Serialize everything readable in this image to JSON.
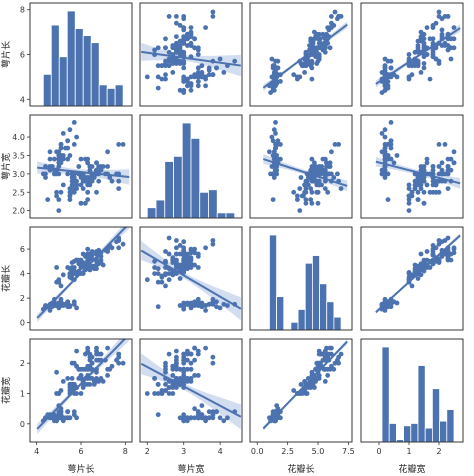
{
  "chart_data": {
    "type": "scatter",
    "kind": "pairplot",
    "variables": [
      "萼片长",
      "萼片宽",
      "花瓣长",
      "花瓣宽"
    ],
    "colors": {
      "marker": "#4c72b0",
      "band": "#c7d5ec",
      "line": "#4c72b0",
      "frame": "#222222"
    },
    "ranges": [
      [
        3.7,
        8.3
      ],
      [
        1.8,
        4.6
      ],
      [
        -0.6,
        7.8
      ],
      [
        -0.6,
        2.8
      ]
    ],
    "ticks": [
      [
        4,
        6,
        8
      ],
      [
        2.0,
        2.5,
        3.0,
        3.5,
        4.0
      ],
      [
        0,
        2,
        4,
        6
      ],
      [
        0,
        1,
        2
      ]
    ],
    "tick_labels": [
      [
        "4",
        "6",
        "8"
      ],
      [
        "2.0",
        "2.5",
        "3.0",
        "3.5",
        "4.0"
      ],
      [
        "0",
        "2",
        "4",
        "6"
      ],
      [
        "0",
        "1",
        "2"
      ]
    ],
    "bottom_ticks": [
      [
        4,
        6,
        8
      ],
      [
        2,
        3,
        4
      ],
      [
        0.0,
        2.5,
        5.0,
        7.5
      ],
      [
        0,
        1,
        2
      ]
    ],
    "bottom_tick_labels": [
      [
        "4",
        "6",
        "8"
      ],
      [
        "2",
        "3",
        "4"
      ],
      [
        "0.0",
        "2.5",
        "5.0",
        "7.5"
      ],
      [
        "0",
        "1",
        "2"
      ]
    ],
    "grid": false,
    "regression": true,
    "samples": [
      [
        5.1,
        3.5,
        1.4,
        0.2
      ],
      [
        4.9,
        3.0,
        1.4,
        0.2
      ],
      [
        4.7,
        3.2,
        1.3,
        0.2
      ],
      [
        4.6,
        3.1,
        1.5,
        0.2
      ],
      [
        5.0,
        3.6,
        1.4,
        0.2
      ],
      [
        5.4,
        3.9,
        1.7,
        0.4
      ],
      [
        4.6,
        3.4,
        1.4,
        0.3
      ],
      [
        5.0,
        3.4,
        1.5,
        0.2
      ],
      [
        4.4,
        2.9,
        1.4,
        0.2
      ],
      [
        4.9,
        3.1,
        1.5,
        0.1
      ],
      [
        5.4,
        3.7,
        1.5,
        0.2
      ],
      [
        4.8,
        3.4,
        1.6,
        0.2
      ],
      [
        4.8,
        3.0,
        1.4,
        0.1
      ],
      [
        4.3,
        3.0,
        1.1,
        0.1
      ],
      [
        5.8,
        4.0,
        1.2,
        0.2
      ],
      [
        5.7,
        4.4,
        1.5,
        0.4
      ],
      [
        5.4,
        3.9,
        1.3,
        0.4
      ],
      [
        5.1,
        3.5,
        1.4,
        0.3
      ],
      [
        5.7,
        3.8,
        1.7,
        0.3
      ],
      [
        5.1,
        3.8,
        1.5,
        0.3
      ],
      [
        5.4,
        3.4,
        1.7,
        0.2
      ],
      [
        5.1,
        3.7,
        1.5,
        0.4
      ],
      [
        4.6,
        3.6,
        1.0,
        0.2
      ],
      [
        5.1,
        3.3,
        1.7,
        0.5
      ],
      [
        4.8,
        3.4,
        1.9,
        0.2
      ],
      [
        5.0,
        3.0,
        1.6,
        0.2
      ],
      [
        5.0,
        3.4,
        1.6,
        0.4
      ],
      [
        5.2,
        3.5,
        1.5,
        0.2
      ],
      [
        5.2,
        3.4,
        1.4,
        0.2
      ],
      [
        4.7,
        3.2,
        1.6,
        0.2
      ],
      [
        4.8,
        3.1,
        1.6,
        0.2
      ],
      [
        5.4,
        3.4,
        1.5,
        0.4
      ],
      [
        5.2,
        4.1,
        1.5,
        0.1
      ],
      [
        5.5,
        4.2,
        1.4,
        0.2
      ],
      [
        4.9,
        3.1,
        1.5,
        0.2
      ],
      [
        5.0,
        3.2,
        1.2,
        0.2
      ],
      [
        5.5,
        3.5,
        1.3,
        0.2
      ],
      [
        4.9,
        3.6,
        1.4,
        0.1
      ],
      [
        4.4,
        3.0,
        1.3,
        0.2
      ],
      [
        5.1,
        3.4,
        1.5,
        0.2
      ],
      [
        5.0,
        3.5,
        1.3,
        0.3
      ],
      [
        4.5,
        2.3,
        1.3,
        0.3
      ],
      [
        4.4,
        3.2,
        1.3,
        0.2
      ],
      [
        5.0,
        3.5,
        1.6,
        0.6
      ],
      [
        5.1,
        3.8,
        1.9,
        0.4
      ],
      [
        4.8,
        3.0,
        1.4,
        0.3
      ],
      [
        5.1,
        3.8,
        1.6,
        0.2
      ],
      [
        4.6,
        3.2,
        1.4,
        0.2
      ],
      [
        5.3,
        3.7,
        1.5,
        0.2
      ],
      [
        5.0,
        3.3,
        1.4,
        0.2
      ],
      [
        7.0,
        3.2,
        4.7,
        1.4
      ],
      [
        6.4,
        3.2,
        4.5,
        1.5
      ],
      [
        6.9,
        3.1,
        4.9,
        1.5
      ],
      [
        5.5,
        2.3,
        4.0,
        1.3
      ],
      [
        6.5,
        2.8,
        4.6,
        1.5
      ],
      [
        5.7,
        2.8,
        4.5,
        1.3
      ],
      [
        6.3,
        3.3,
        4.7,
        1.6
      ],
      [
        4.9,
        2.4,
        3.3,
        1.0
      ],
      [
        6.6,
        2.9,
        4.6,
        1.3
      ],
      [
        5.2,
        2.7,
        3.9,
        1.4
      ],
      [
        5.0,
        2.0,
        3.5,
        1.0
      ],
      [
        5.9,
        3.0,
        4.2,
        1.5
      ],
      [
        6.0,
        2.2,
        4.0,
        1.0
      ],
      [
        6.1,
        2.9,
        4.7,
        1.4
      ],
      [
        5.6,
        2.9,
        3.6,
        1.3
      ],
      [
        6.7,
        3.1,
        4.4,
        1.4
      ],
      [
        5.6,
        3.0,
        4.5,
        1.5
      ],
      [
        5.8,
        2.7,
        4.1,
        1.0
      ],
      [
        6.2,
        2.2,
        4.5,
        1.5
      ],
      [
        5.6,
        2.5,
        3.9,
        1.1
      ],
      [
        5.9,
        3.2,
        4.8,
        1.8
      ],
      [
        6.1,
        2.8,
        4.0,
        1.3
      ],
      [
        6.3,
        2.5,
        4.9,
        1.5
      ],
      [
        6.1,
        2.8,
        4.7,
        1.2
      ],
      [
        6.4,
        2.9,
        4.3,
        1.3
      ],
      [
        6.6,
        3.0,
        4.4,
        1.4
      ],
      [
        6.8,
        2.8,
        4.8,
        1.4
      ],
      [
        6.7,
        3.0,
        5.0,
        1.7
      ],
      [
        6.0,
        2.9,
        4.5,
        1.5
      ],
      [
        5.7,
        2.6,
        3.5,
        1.0
      ],
      [
        5.5,
        2.4,
        3.8,
        1.1
      ],
      [
        5.5,
        2.4,
        3.7,
        1.0
      ],
      [
        5.8,
        2.7,
        3.9,
        1.2
      ],
      [
        6.0,
        2.7,
        5.1,
        1.6
      ],
      [
        5.4,
        3.0,
        4.5,
        1.5
      ],
      [
        6.0,
        3.4,
        4.5,
        1.6
      ],
      [
        6.7,
        3.1,
        4.7,
        1.5
      ],
      [
        6.3,
        2.3,
        4.4,
        1.3
      ],
      [
        5.6,
        3.0,
        4.1,
        1.3
      ],
      [
        5.5,
        2.5,
        4.0,
        1.3
      ],
      [
        5.5,
        2.6,
        4.4,
        1.2
      ],
      [
        6.1,
        3.0,
        4.6,
        1.4
      ],
      [
        5.8,
        2.6,
        4.0,
        1.2
      ],
      [
        5.0,
        2.3,
        3.3,
        1.0
      ],
      [
        5.6,
        2.7,
        4.2,
        1.3
      ],
      [
        5.7,
        3.0,
        4.2,
        1.2
      ],
      [
        5.7,
        2.9,
        4.2,
        1.3
      ],
      [
        6.2,
        2.9,
        4.3,
        1.3
      ],
      [
        5.1,
        2.5,
        3.0,
        1.1
      ],
      [
        5.7,
        2.8,
        4.1,
        1.3
      ],
      [
        6.3,
        3.3,
        6.0,
        2.5
      ],
      [
        5.8,
        2.7,
        5.1,
        1.9
      ],
      [
        7.1,
        3.0,
        5.9,
        2.1
      ],
      [
        6.3,
        2.9,
        5.6,
        1.8
      ],
      [
        6.5,
        3.0,
        5.8,
        2.2
      ],
      [
        7.6,
        3.0,
        6.6,
        2.1
      ],
      [
        4.9,
        2.5,
        4.5,
        1.7
      ],
      [
        7.3,
        2.9,
        6.3,
        1.8
      ],
      [
        6.7,
        2.5,
        5.8,
        1.8
      ],
      [
        7.2,
        3.6,
        6.1,
        2.5
      ],
      [
        6.5,
        3.2,
        5.1,
        2.0
      ],
      [
        6.4,
        2.7,
        5.3,
        1.9
      ],
      [
        6.8,
        3.0,
        5.5,
        2.1
      ],
      [
        5.7,
        2.5,
        5.0,
        2.0
      ],
      [
        5.8,
        2.8,
        5.1,
        2.4
      ],
      [
        6.4,
        3.2,
        5.3,
        2.3
      ],
      [
        6.5,
        3.0,
        5.5,
        1.8
      ],
      [
        7.7,
        3.8,
        6.7,
        2.2
      ],
      [
        7.7,
        2.6,
        6.9,
        2.3
      ],
      [
        6.0,
        2.2,
        5.0,
        1.5
      ],
      [
        6.9,
        3.2,
        5.7,
        2.3
      ],
      [
        5.6,
        2.8,
        4.9,
        2.0
      ],
      [
        7.7,
        2.8,
        6.7,
        2.0
      ],
      [
        6.3,
        2.7,
        4.9,
        1.8
      ],
      [
        6.7,
        3.3,
        5.7,
        2.1
      ],
      [
        7.2,
        3.2,
        6.0,
        1.8
      ],
      [
        6.2,
        2.8,
        4.8,
        1.8
      ],
      [
        6.1,
        3.0,
        4.9,
        1.8
      ],
      [
        6.4,
        2.8,
        5.6,
        2.1
      ],
      [
        7.2,
        3.0,
        5.8,
        1.6
      ],
      [
        7.4,
        2.8,
        6.1,
        1.9
      ],
      [
        7.9,
        3.8,
        6.4,
        2.0
      ],
      [
        6.4,
        2.8,
        5.6,
        2.2
      ],
      [
        6.3,
        2.8,
        5.1,
        1.5
      ],
      [
        6.1,
        2.6,
        5.6,
        1.4
      ],
      [
        7.7,
        3.0,
        6.1,
        2.3
      ],
      [
        6.3,
        3.4,
        5.6,
        2.4
      ],
      [
        6.4,
        3.1,
        5.5,
        1.8
      ],
      [
        6.0,
        3.0,
        4.8,
        1.8
      ],
      [
        6.9,
        3.1,
        5.4,
        2.1
      ],
      [
        6.7,
        3.1,
        5.6,
        2.4
      ],
      [
        6.9,
        3.1,
        5.1,
        2.3
      ],
      [
        5.8,
        2.7,
        5.1,
        1.9
      ],
      [
        6.8,
        3.2,
        5.9,
        2.3
      ],
      [
        6.7,
        3.3,
        5.7,
        2.5
      ],
      [
        6.7,
        3.0,
        5.2,
        2.3
      ],
      [
        6.3,
        2.5,
        5.0,
        1.9
      ],
      [
        6.5,
        3.0,
        5.2,
        2.0
      ],
      [
        6.2,
        3.4,
        5.4,
        2.3
      ],
      [
        5.9,
        3.0,
        5.1,
        1.8
      ]
    ]
  }
}
